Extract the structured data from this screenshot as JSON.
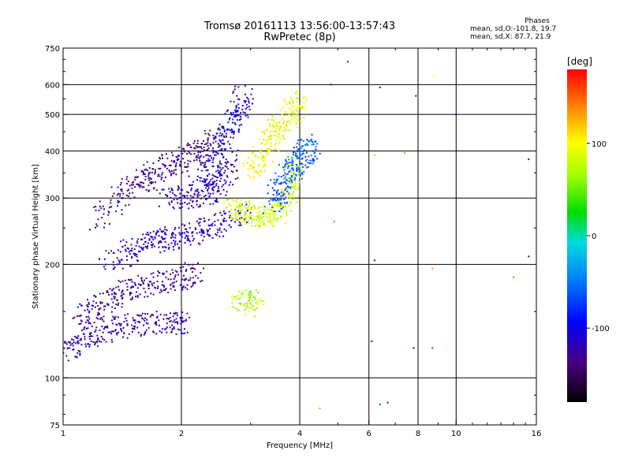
{
  "header": {
    "title": "Tromsø 20161113 13:56:00-13:57:43",
    "subtitle": "RwPretec (8p)"
  },
  "phases_info": {
    "title": "Phases",
    "line_o": "mean, sd,O:-101.8, 19.7",
    "line_x": "mean, sd,X: 87.7, 21.9"
  },
  "colorbar": {
    "label": "[deg]",
    "ticks": [
      "100",
      "0",
      "-100"
    ],
    "tick_values": [
      100,
      0,
      -100
    ],
    "range": [
      -180,
      180
    ]
  },
  "chart_data": {
    "type": "scatter",
    "title": "Tromsø 20161113 13:56:00-13:57:43",
    "subtitle": "RwPretec (8p)",
    "xlabel": "Frequency [MHz]",
    "ylabel": "Stationary phase Virtual Height [km]",
    "x_scale": "log",
    "y_scale": "log",
    "xlim": [
      1,
      16
    ],
    "ylim": [
      75,
      750
    ],
    "x_ticks": [
      1,
      2,
      4,
      6,
      8,
      10,
      16
    ],
    "x_tick_labels": [
      "1",
      "2",
      "4",
      "6",
      "8",
      "10",
      "16"
    ],
    "y_ticks": [
      75,
      100,
      200,
      300,
      400,
      500,
      600,
      750
    ],
    "y_tick_labels": [
      "75",
      "100",
      "200",
      "300",
      "400",
      "500",
      "600",
      "750"
    ],
    "grid": true,
    "color_by": "phase [deg]",
    "traces": [
      {
        "f": [
          1.0,
          1.1,
          1.2,
          1.35,
          1.5,
          1.7,
          1.9,
          2.05
        ],
        "h": [
          115,
          125,
          130,
          135,
          138,
          140,
          140,
          140
        ],
        "phase": -125
      },
      {
        "f": [
          1.1,
          1.2,
          1.3,
          1.45,
          1.6,
          1.8,
          2.0,
          2.2
        ],
        "h": [
          145,
          150,
          160,
          170,
          175,
          180,
          185,
          190
        ],
        "phase": -130
      },
      {
        "f": [
          1.3,
          1.45,
          1.6,
          1.75,
          1.9,
          2.1,
          2.3,
          2.6,
          2.9
        ],
        "h": [
          200,
          215,
          225,
          230,
          235,
          240,
          250,
          260,
          275
        ],
        "phase": -115
      },
      {
        "f": [
          1.2,
          1.4,
          1.55,
          1.7,
          1.85,
          2.0,
          2.2,
          2.4,
          2.55
        ],
        "h": [
          260,
          300,
          330,
          350,
          365,
          380,
          400,
          420,
          450
        ],
        "phase": -135
      },
      {
        "f": [
          1.8,
          2.0,
          2.2,
          2.4,
          2.55,
          2.7
        ],
        "h": [
          300,
          300,
          305,
          315,
          340,
          380
        ],
        "phase": -120
      },
      {
        "f": [
          2.2,
          2.4,
          2.55,
          2.7,
          2.8,
          2.9
        ],
        "h": [
          320,
          360,
          410,
          470,
          520,
          560
        ],
        "phase": -105
      },
      {
        "f": [
          2.6,
          2.8,
          3.0,
          3.2,
          3.4,
          3.6,
          3.75,
          3.85,
          3.9
        ],
        "h": [
          280,
          280,
          270,
          268,
          270,
          280,
          300,
          330,
          380
        ],
        "phase": 85
      },
      {
        "f": [
          3.0,
          3.15,
          3.3,
          3.5,
          3.7,
          3.85,
          3.95
        ],
        "h": [
          340,
          380,
          420,
          450,
          480,
          510,
          560
        ],
        "phase": 95
      },
      {
        "f": [
          3.4,
          3.55,
          3.7,
          3.85,
          4.0,
          4.15,
          4.3
        ],
        "h": [
          290,
          310,
          340,
          360,
          380,
          400,
          420
        ],
        "phase": -60
      },
      {
        "f": [
          2.8,
          2.95,
          3.1
        ],
        "h": [
          165,
          160,
          155
        ],
        "phase": 70
      }
    ],
    "isolated_points": [
      {
        "f": 4.8,
        "h": 600,
        "phase": -110
      },
      {
        "f": 5.3,
        "h": 690,
        "phase": -110
      },
      {
        "f": 6.4,
        "h": 590,
        "phase": -110
      },
      {
        "f": 7.9,
        "h": 560,
        "phase": -110
      },
      {
        "f": 10.0,
        "h": 500,
        "phase": -110
      },
      {
        "f": 6.2,
        "h": 205,
        "phase": -110
      },
      {
        "f": 6.1,
        "h": 125,
        "phase": -110
      },
      {
        "f": 7.8,
        "h": 120,
        "phase": -110
      },
      {
        "f": 8.7,
        "h": 120,
        "phase": -60
      },
      {
        "f": 6.4,
        "h": 85,
        "phase": -60
      },
      {
        "f": 6.7,
        "h": 86,
        "phase": -110
      },
      {
        "f": 8.8,
        "h": 630,
        "phase": 100
      },
      {
        "f": 8.7,
        "h": 195,
        "phase": 130
      },
      {
        "f": 6.2,
        "h": 390,
        "phase": 120
      },
      {
        "f": 7.4,
        "h": 395,
        "phase": 140
      },
      {
        "f": 4.9,
        "h": 260,
        "phase": 140
      },
      {
        "f": 4.5,
        "h": 83,
        "phase": 130
      },
      {
        "f": 14.0,
        "h": 185,
        "phase": 150
      },
      {
        "f": 15.3,
        "h": 210,
        "phase": -110
      },
      {
        "f": 15.3,
        "h": 380,
        "phase": -110
      }
    ]
  }
}
